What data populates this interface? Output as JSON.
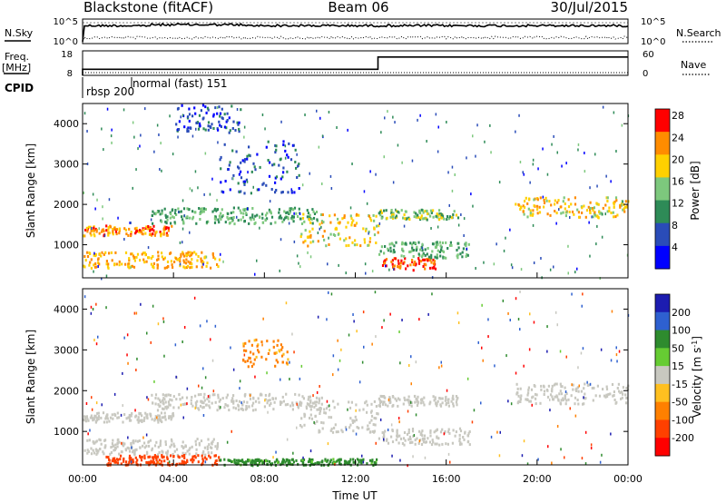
{
  "header": {
    "station": "Blackstone (fitACF)",
    "beam": "Beam 06",
    "date": "30/Jul/2015"
  },
  "nsky_panel": {
    "left_label": "N.Sky",
    "right_label": "N.Search",
    "left_ticks": [
      "10^5",
      "10^0"
    ],
    "right_ticks": [
      "10^5",
      "10^0"
    ]
  },
  "freq_panel": {
    "left_label_line1": "Freq.",
    "left_label_line2": "[MHz]",
    "right_label": "Nave",
    "left_ticks": [
      "18",
      "8"
    ],
    "right_ticks": [
      "60",
      "0"
    ],
    "freq_segments": [
      {
        "start_hour": 0.0,
        "end_hour": 13.0,
        "mhz": 10.5
      },
      {
        "start_hour": 13.0,
        "end_hour": 24.0,
        "mhz": 15.5
      }
    ]
  },
  "cpid": {
    "label": "CPID",
    "programs": [
      {
        "name": "rbsp 200",
        "start_hour": 0.0
      },
      {
        "name": "normal (fast) 151",
        "start_hour": 1.8
      }
    ]
  },
  "chart_data": [
    {
      "type": "heatmap",
      "parameter": "Power",
      "ylabel": "Slant Range [km]",
      "xlabel": "",
      "xlim": [
        0,
        24
      ],
      "ylim": [
        180,
        4500
      ],
      "yticks": [
        1000,
        2000,
        3000,
        4000
      ],
      "colorbar": {
        "label": "Power [dB]",
        "ticks": [
          "4",
          "8",
          "12",
          "16",
          "20",
          "24",
          "28"
        ],
        "colors": [
          "#0000ff",
          "#2a4cb8",
          "#2e8b57",
          "#7dc87d",
          "#ffd000",
          "#ff8c00",
          "#ff0000"
        ]
      },
      "scatter_bands": [
        {
          "t0": 0.0,
          "t1": 4.0,
          "r0": 1250,
          "r1": 1500,
          "level": 24
        },
        {
          "t0": 3.0,
          "t1": 10.5,
          "r0": 1550,
          "r1": 1950,
          "level": 14
        },
        {
          "t0": 9.5,
          "t1": 13.0,
          "r0": 1000,
          "r1": 1800,
          "level": 20
        },
        {
          "t0": 0.0,
          "t1": 6.0,
          "r0": 450,
          "r1": 850,
          "level": 22
        },
        {
          "t0": 13.0,
          "t1": 15.5,
          "r0": 400,
          "r1": 700,
          "level": 26
        },
        {
          "t0": 13.0,
          "t1": 17.0,
          "r0": 700,
          "r1": 1100,
          "level": 14
        },
        {
          "t0": 13.0,
          "t1": 16.5,
          "r0": 1650,
          "r1": 1900,
          "level": 16
        },
        {
          "t0": 19.0,
          "t1": 24.0,
          "r0": 1700,
          "r1": 2200,
          "level": 20
        },
        {
          "t0": 4.0,
          "t1": 7.0,
          "r0": 3800,
          "r1": 4500,
          "level": 8
        },
        {
          "t0": 6.0,
          "t1": 9.5,
          "r0": 2300,
          "r1": 3600,
          "level": 8
        }
      ]
    },
    {
      "type": "heatmap",
      "parameter": "Velocity",
      "ylabel": "Slant Range [km]",
      "xlabel": "Time UT",
      "xlim": [
        0,
        24
      ],
      "ylim": [
        180,
        4500
      ],
      "yticks": [
        1000,
        2000,
        3000,
        4000
      ],
      "xticks": [
        "00:00",
        "04:00",
        "08:00",
        "12:00",
        "16:00",
        "20:00",
        "00:00"
      ],
      "colorbar": {
        "label": "Velocity [m s-1]",
        "label_main": "Velocity [m s",
        "label_sup": "-1",
        "label_end": "]",
        "ticks": [
          "200",
          "100",
          "50",
          "15",
          "-15",
          "-50",
          "-100",
          "-200"
        ],
        "colors": [
          "#1c1cb0",
          "#2e60d0",
          "#2e8b2e",
          "#66cc33",
          "#c8c8c0",
          "#ffc020",
          "#ff8000",
          "#ff4000",
          "#ff0000"
        ]
      },
      "scatter_bands": [
        {
          "t0": 0.0,
          "t1": 4.0,
          "r0": 1250,
          "r1": 1500,
          "level": 0
        },
        {
          "t0": 3.0,
          "t1": 10.5,
          "r0": 1550,
          "r1": 1950,
          "level": 0
        },
        {
          "t0": 9.5,
          "t1": 13.0,
          "r0": 1000,
          "r1": 1800,
          "level": 0
        },
        {
          "t0": 0.0,
          "t1": 6.0,
          "r0": 450,
          "r1": 850,
          "level": 0
        },
        {
          "t0": 1.0,
          "t1": 6.0,
          "r0": 200,
          "r1": 450,
          "level": -120
        },
        {
          "t0": 6.0,
          "t1": 13.0,
          "r0": 200,
          "r1": 350,
          "level": 40
        },
        {
          "t0": 13.0,
          "t1": 17.0,
          "r0": 700,
          "r1": 1100,
          "level": 0
        },
        {
          "t0": 13.0,
          "t1": 16.5,
          "r0": 1650,
          "r1": 1900,
          "level": 0
        },
        {
          "t0": 19.0,
          "t1": 24.0,
          "r0": 1700,
          "r1": 2200,
          "level": 0
        },
        {
          "t0": 7.0,
          "t1": 9.0,
          "r0": 2600,
          "r1": 3300,
          "level": -60
        }
      ]
    }
  ]
}
